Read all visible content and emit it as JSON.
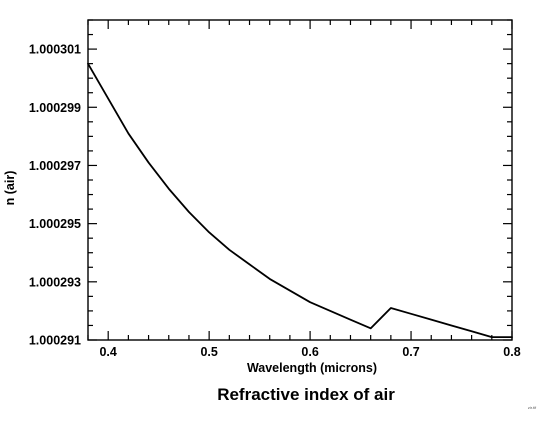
{
  "chart_data": {
    "type": "line",
    "title": "Refractive index of air",
    "xlabel": "Wavelength (microns)",
    "ylabel": "n (air)",
    "xlim": [
      0.38,
      0.8
    ],
    "ylim": [
      1.000291,
      1.000302
    ],
    "x_ticks": [
      "0.4",
      "0.5",
      "0.6",
      "0.7",
      "0.8"
    ],
    "y_ticks": [
      "1.000291",
      "1.000293",
      "1.000295",
      "1.000297",
      "1.000299",
      "1.000301"
    ],
    "grid": false,
    "series": [
      {
        "x": [
          0.38,
          0.4,
          0.42,
          0.44,
          0.46,
          0.48,
          0.5,
          0.52,
          0.54,
          0.56,
          0.58,
          0.6,
          0.62,
          0.64,
          0.66,
          0.68,
          0.7,
          0.72,
          0.74,
          0.76,
          0.78,
          0.8
        ],
        "y": [
          1.0003005,
          1.0002993,
          1.0002981,
          1.0002971,
          1.0002962,
          1.0002954,
          1.0002947,
          1.0002941,
          1.0002936,
          1.0002931,
          1.0002927,
          1.0002923,
          1.000292,
          1.0002917,
          1.0002914,
          1.0002921,
          1.0002919,
          1.0002917,
          1.0002915,
          1.0002913,
          1.0002911,
          1.0002911
        ]
      }
    ]
  },
  "corner_tag": "zir.tif"
}
